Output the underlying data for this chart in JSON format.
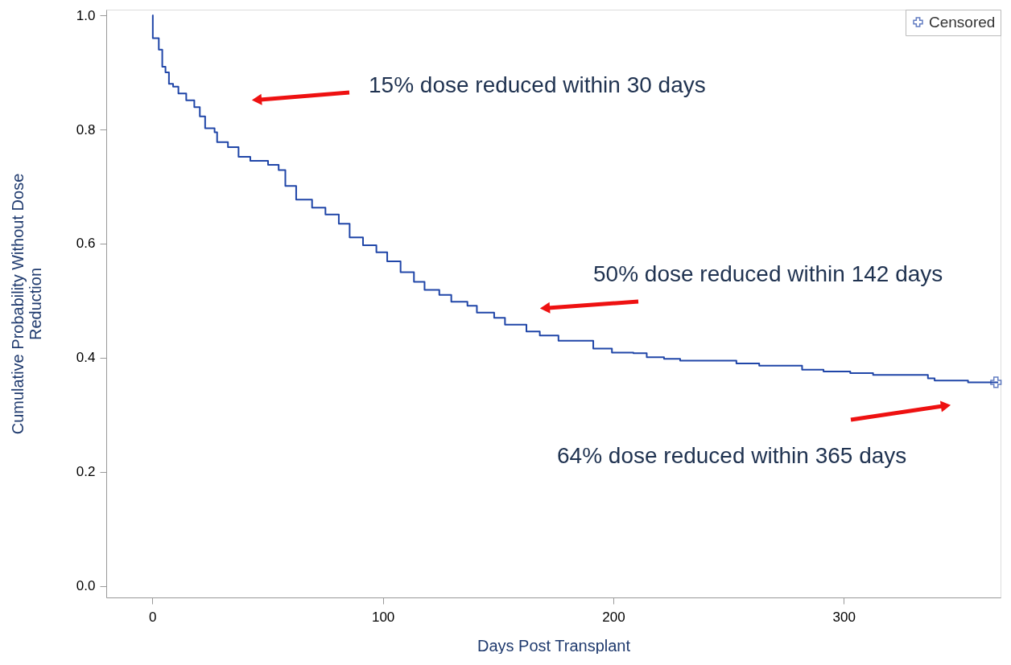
{
  "chart_data": {
    "type": "step",
    "xlabel": "Days Post Transplant",
    "ylabel": "Cumulative Probability Without Dose Reduction",
    "xlim": [
      -20,
      368
    ],
    "ylim": [
      -0.02,
      1.01
    ],
    "xticks": [
      0,
      100,
      200,
      300
    ],
    "yticks": [
      {
        "value": 0,
        "label": "0.0"
      },
      {
        "value": 0.2,
        "label": "0.2"
      },
      {
        "value": 0.4,
        "label": "0.4"
      },
      {
        "value": 0.6,
        "label": "0.6"
      },
      {
        "value": 0.8,
        "label": "0.8"
      },
      {
        "value": 1,
        "label": "1.0"
      }
    ],
    "grid": false,
    "legend": "top right",
    "annotations": [
      "15% dose reduced within 30 days",
      "50% dose reduced within 142 days",
      "64% dose reduced within 365 days"
    ],
    "series": [
      {
        "type": "step",
        "color": "#2046a8",
        "x": [
          0,
          0.2,
          2.8,
          4.3,
          5.7,
          7.2,
          9,
          11.3,
          14.7,
          18.2,
          20.6,
          22.9,
          27,
          28.1,
          32.8,
          37.4,
          42.5,
          50.2,
          54.8,
          57.7,
          62.4,
          69.3,
          75.1,
          80.9,
          85.6,
          91.4,
          97.2,
          101.9,
          107.7,
          113.5,
          118.1,
          124.5,
          129.7,
          136.7,
          140.8,
          148.3,
          153,
          162.3,
          168.1,
          176.2,
          191.3,
          199.4,
          208.7,
          214.5,
          222,
          229,
          253.4,
          263.3,
          281.9,
          291.2,
          302.8,
          312.7,
          336.5,
          339.4,
          353.9,
          367
        ],
        "values": [
          1.0,
          0.96,
          0.94,
          0.91,
          0.9,
          0.88,
          0.875,
          0.863,
          0.851,
          0.839,
          0.823,
          0.802,
          0.795,
          0.778,
          0.769,
          0.752,
          0.745,
          0.738,
          0.729,
          0.701,
          0.677,
          0.663,
          0.651,
          0.635,
          0.611,
          0.597,
          0.585,
          0.569,
          0.55,
          0.533,
          0.519,
          0.51,
          0.498,
          0.491,
          0.479,
          0.47,
          0.458,
          0.446,
          0.439,
          0.43,
          0.416,
          0.409,
          0.408,
          0.401,
          0.398,
          0.395,
          0.39,
          0.386,
          0.379,
          0.376,
          0.373,
          0.37,
          0.364,
          0.36,
          0.357,
          0.357
        ]
      },
      {
        "type": "scatter",
        "name": "Censored",
        "color": "#2046a8",
        "marker": "cross",
        "x": [
          366
        ],
        "values": [
          0.357
        ]
      }
    ]
  }
}
